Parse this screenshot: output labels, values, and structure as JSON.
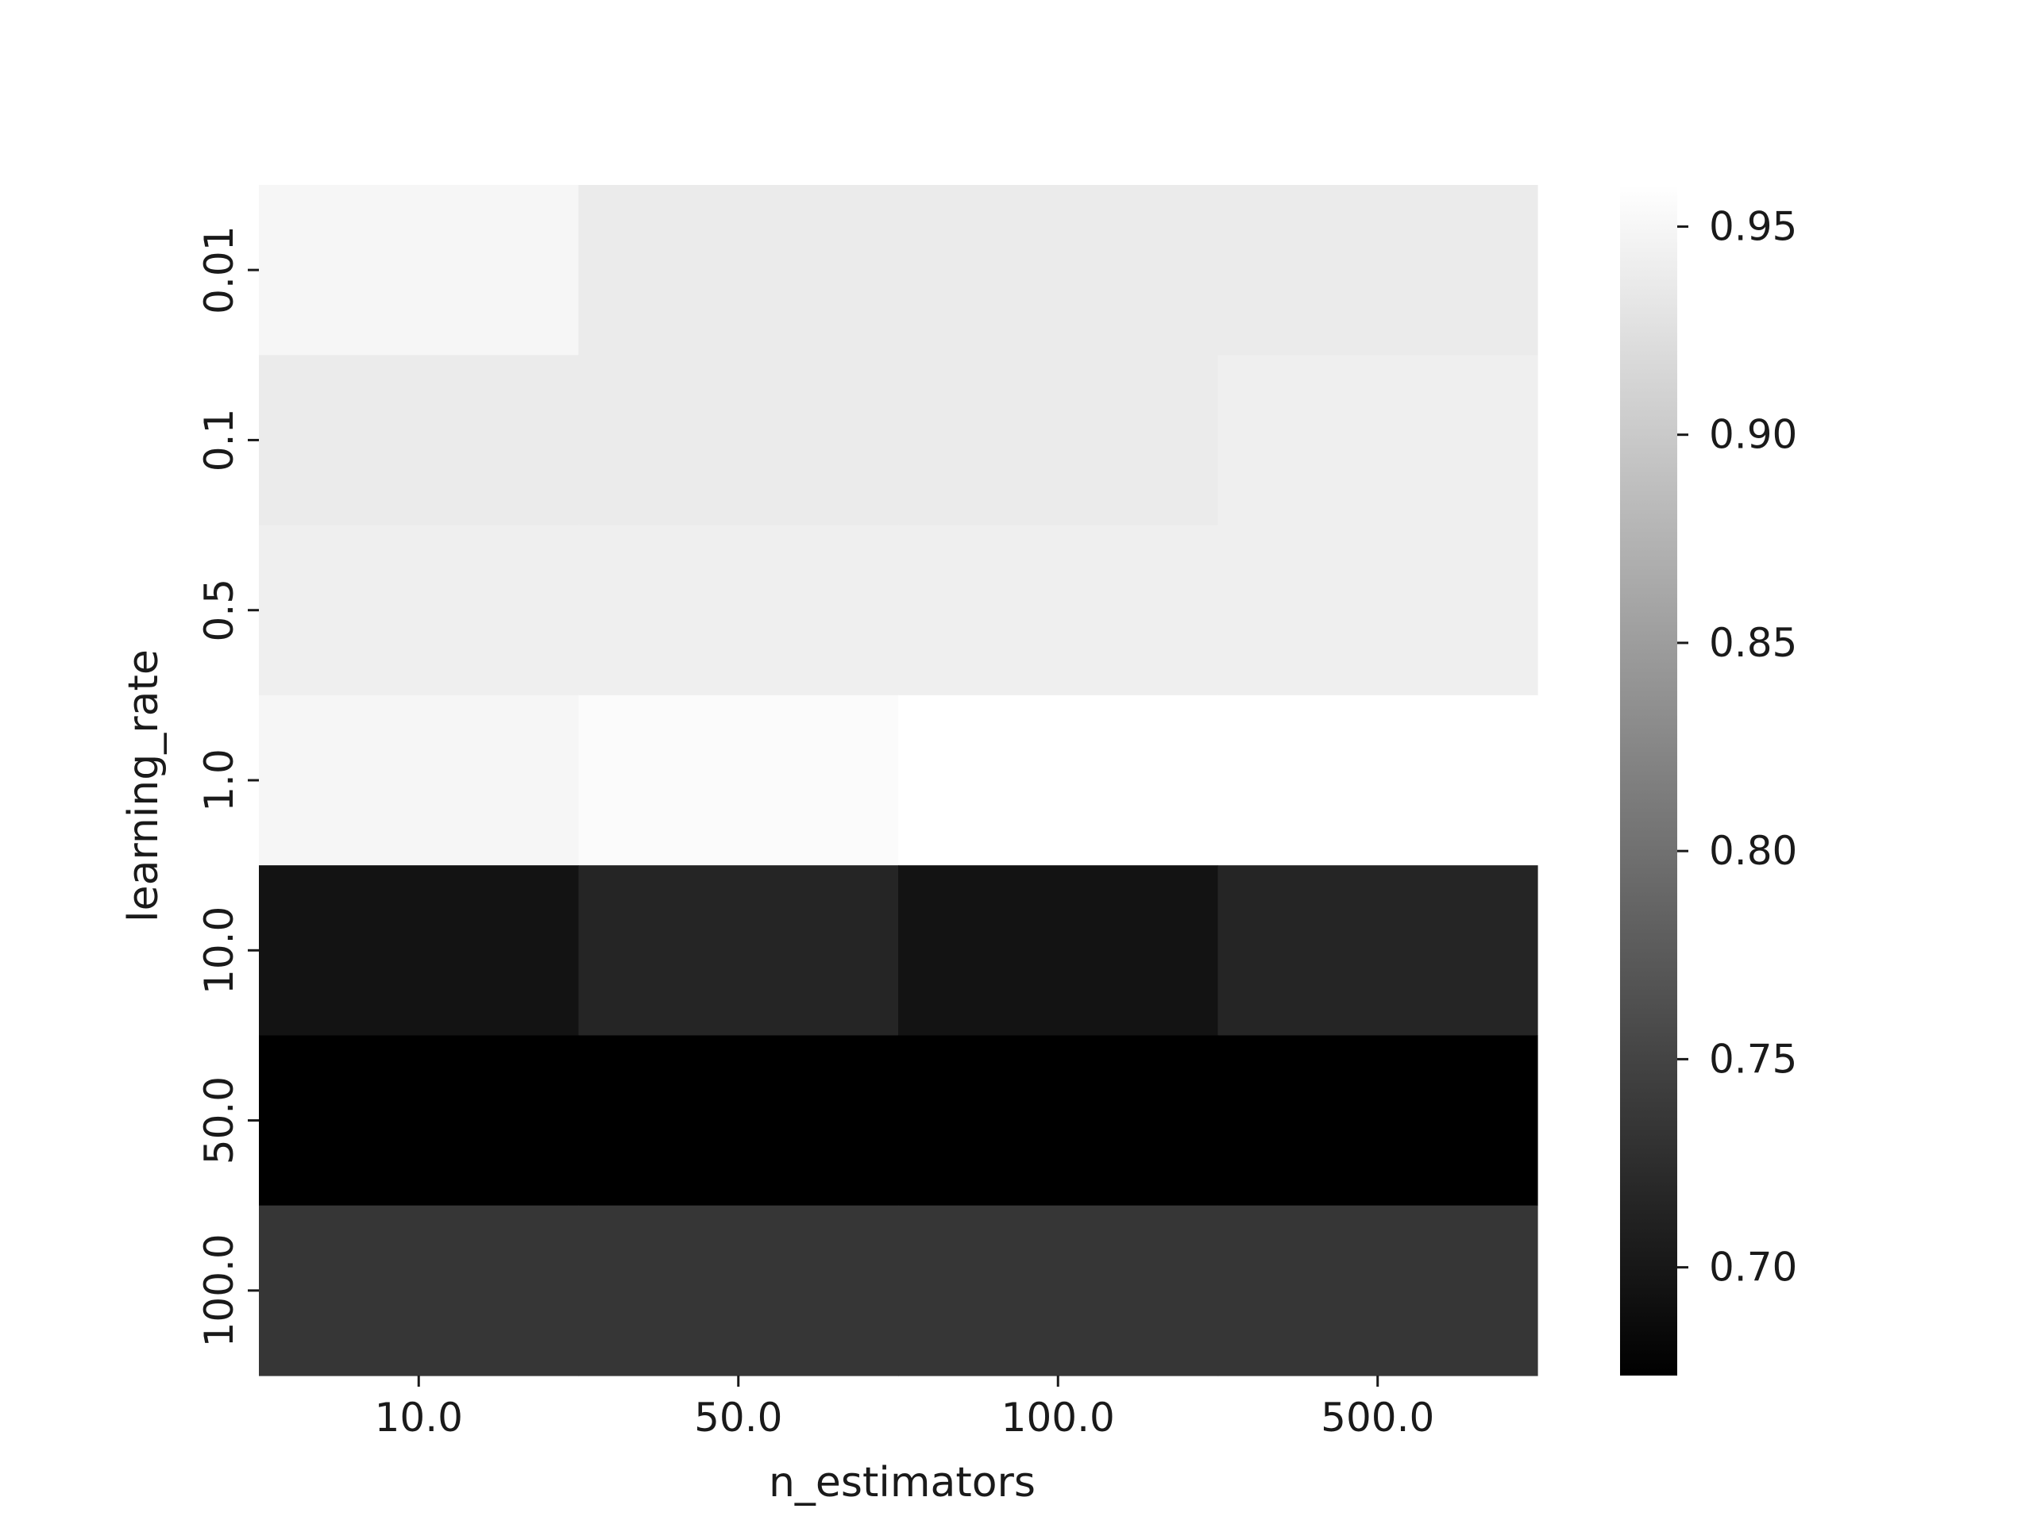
{
  "chart_data": {
    "type": "heatmap",
    "colormap": "gray",
    "xlabel": "n_estimators",
    "ylabel": "learning_rate",
    "x_categories": [
      "10.0",
      "50.0",
      "100.0",
      "500.0"
    ],
    "y_categories": [
      "0.01",
      "0.1",
      "0.5",
      "1.0",
      "10.0",
      "50.0",
      "100.0"
    ],
    "values": [
      [
        0.95,
        0.938,
        0.938,
        0.938
      ],
      [
        0.938,
        0.938,
        0.938,
        0.942
      ],
      [
        0.942,
        0.942,
        0.942,
        0.942
      ],
      [
        0.95,
        0.955,
        0.96,
        0.96
      ],
      [
        0.695,
        0.715,
        0.695,
        0.715
      ],
      [
        0.674,
        0.674,
        0.674,
        0.674
      ],
      [
        0.735,
        0.735,
        0.735,
        0.735
      ]
    ],
    "colorbar": {
      "min": 0.674,
      "max": 0.96,
      "ticks": [
        0.7,
        0.75,
        0.8,
        0.85,
        0.9,
        0.95
      ],
      "tick_labels": [
        "0.70",
        "0.75",
        "0.80",
        "0.85",
        "0.90",
        "0.95"
      ]
    },
    "grid": false,
    "legend": "colorbar-right"
  }
}
